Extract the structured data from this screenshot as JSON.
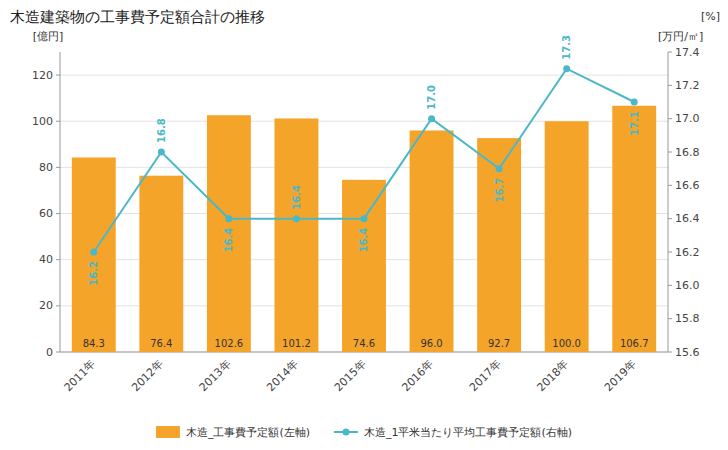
{
  "chart_data": {
    "type": "bar",
    "title": "木造建築物の工事費予定額合計の推移",
    "categories": [
      "2011年",
      "2012年",
      "2013年",
      "2014年",
      "2015年",
      "2016年",
      "2017年",
      "2018年",
      "2019年"
    ],
    "series": [
      {
        "name": "木造_工事費予定額(左軸)",
        "type": "bar",
        "color": "#f5a42a",
        "values": [
          84.3,
          76.4,
          102.6,
          101.2,
          74.6,
          96.0,
          92.7,
          100.0,
          106.7
        ],
        "value_labels": [
          "84.3",
          "76.4",
          "102.6",
          "101.2",
          "74.6",
          "96.0",
          "92.7",
          "100.0",
          "106.7"
        ],
        "data_labels": true
      },
      {
        "name": "木造_1平米当たり平均工事費予定額(右軸)",
        "type": "line",
        "axis": "y2",
        "color": "#4ab8c8",
        "marker": "circle",
        "values": [
          16.2,
          16.8,
          16.4,
          16.4,
          16.4,
          17.0,
          16.7,
          17.3,
          17.1
        ],
        "value_labels": [
          "16.2",
          "16.8",
          "16.4",
          "16.4",
          "16.4",
          "17.0",
          "16.7",
          "17.3",
          "17.1"
        ],
        "data_labels": true
      }
    ],
    "ylabel": "[億円]",
    "y2label": "[万円/㎡]",
    "annotations": [
      {
        "text": "[%]"
      }
    ],
    "ylim": [
      0,
      130
    ],
    "yticks": [
      0,
      20,
      40,
      60,
      80,
      100,
      120
    ],
    "y2lim": [
      15.6,
      17.4
    ],
    "y2ticks": [
      15.6,
      15.8,
      {
        "value": 16.0,
        "label": "16.0"
      },
      16.2,
      16.4,
      16.6,
      16.8,
      {
        "value": 17.0,
        "label": "17.0"
      },
      17.2,
      17.4
    ],
    "grid": true,
    "legend": "bottom"
  }
}
